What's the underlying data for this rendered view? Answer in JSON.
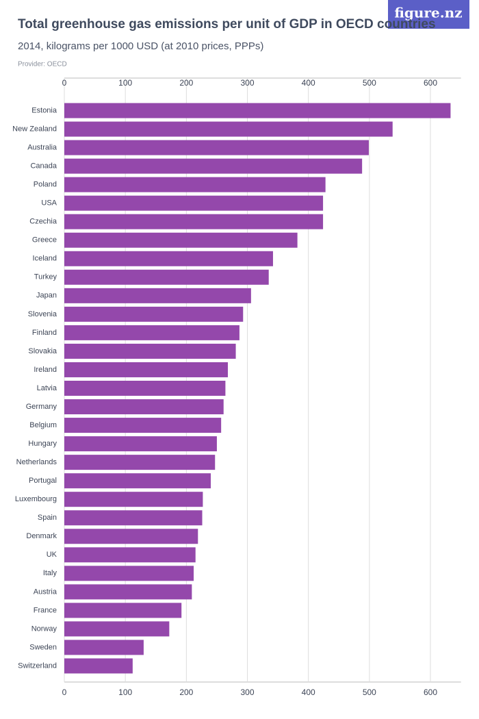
{
  "chart_data": {
    "type": "bar",
    "orientation": "horizontal",
    "title": "Total greenhouse gas emissions per unit of GDP in OECD countries",
    "subtitle": "2014, kilograms per 1000 USD (at 2010 prices, PPPs)",
    "source": "Provider: OECD",
    "logo": "figure.nz",
    "categories": [
      "Estonia",
      "New Zealand",
      "Australia",
      "Canada",
      "Poland",
      "USA",
      "Czechia",
      "Greece",
      "Iceland",
      "Turkey",
      "Japan",
      "Slovenia",
      "Finland",
      "Slovakia",
      "Ireland",
      "Latvia",
      "Germany",
      "Belgium",
      "Hungary",
      "Netherlands",
      "Portugal",
      "Luxembourg",
      "Spain",
      "Denmark",
      "UK",
      "Italy",
      "Austria",
      "France",
      "Norway",
      "Sweden",
      "Switzerland"
    ],
    "values": [
      633,
      538,
      499,
      488,
      428,
      424,
      424,
      382,
      342,
      335,
      306,
      293,
      287,
      281,
      268,
      264,
      261,
      257,
      250,
      247,
      240,
      227,
      226,
      219,
      215,
      212,
      209,
      192,
      172,
      130,
      112
    ],
    "color": "#9448ab",
    "xlim": [
      0,
      650
    ],
    "xticks": [
      0,
      100,
      200,
      300,
      400,
      500,
      600
    ],
    "grid": true
  }
}
